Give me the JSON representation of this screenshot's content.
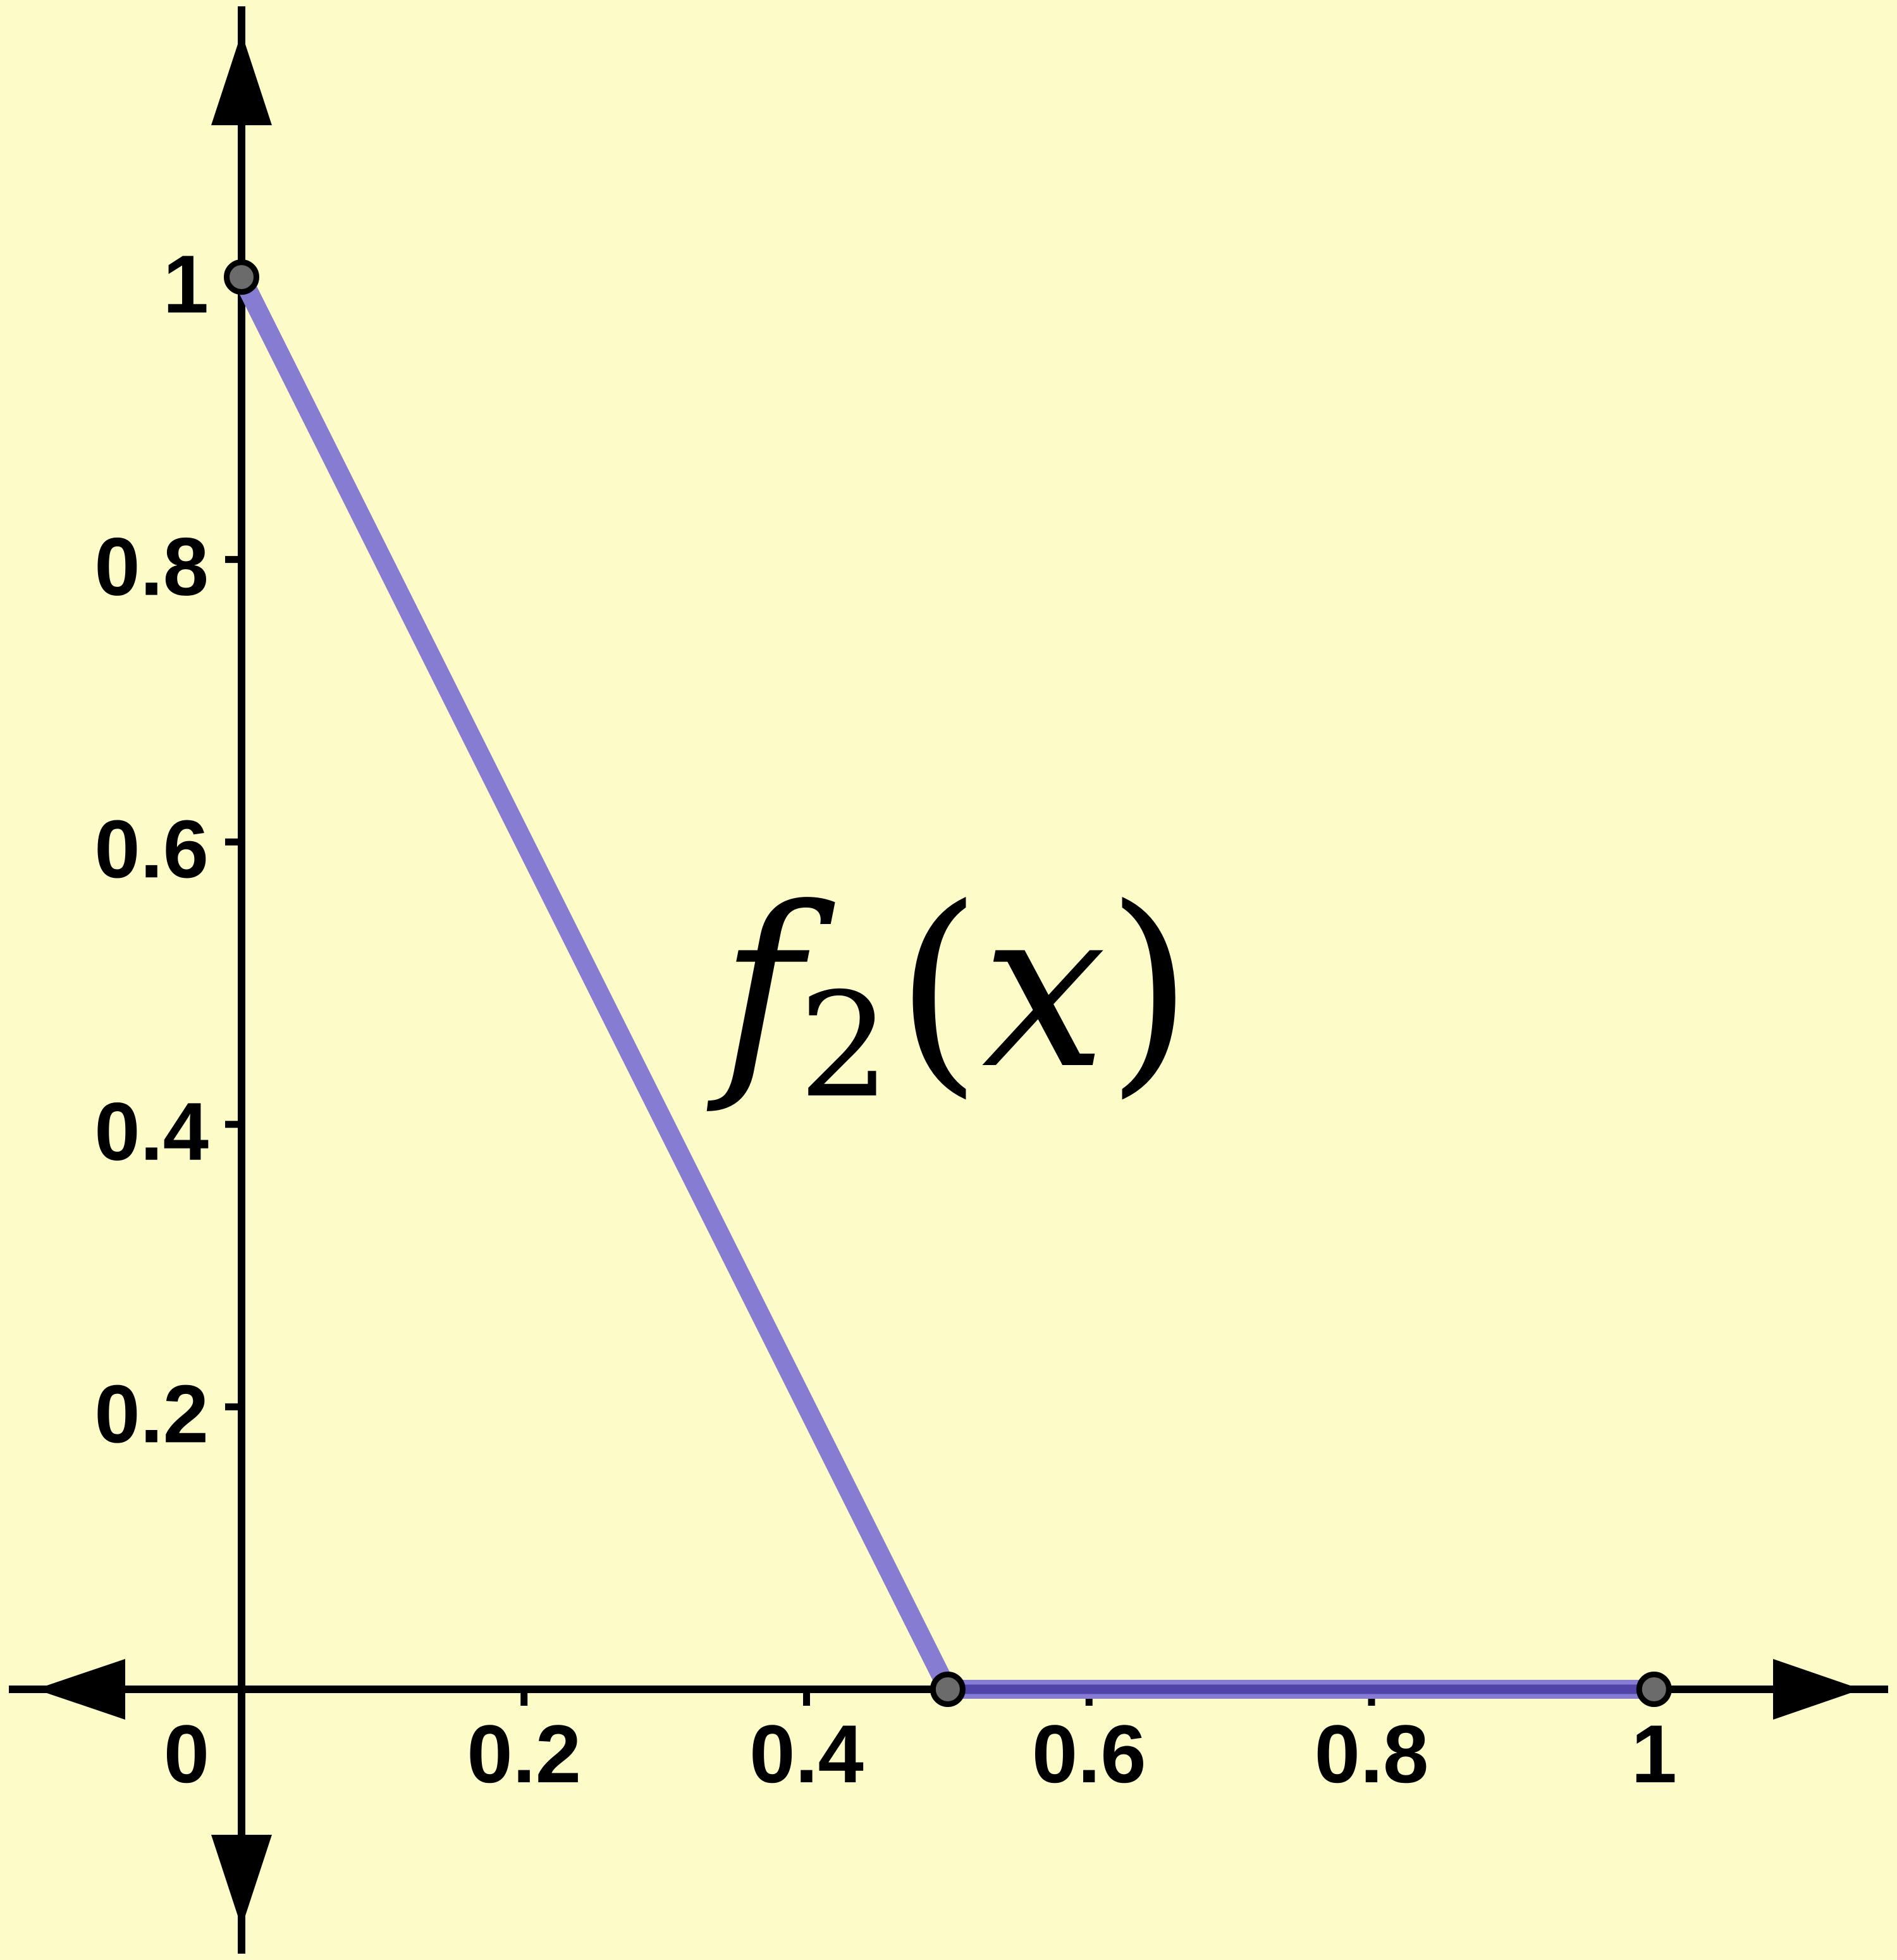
{
  "figure": {
    "description": "Graph of the piecewise linear function f2(x) on a pale yellow background"
  },
  "chart_data": {
    "type": "line",
    "title": "",
    "xlabel": "",
    "ylabel": "",
    "xlim": [
      -0.171,
      1.172
    ],
    "ylim": [
      -0.1917,
      1.1962
    ],
    "grid": false,
    "legend": false,
    "background_color": "#FDFCC8",
    "axis_color": "#000000",
    "x_axis": {
      "ticks": [
        {
          "value": 0,
          "label": "0"
        },
        {
          "value": 0.2,
          "label": "0.2"
        },
        {
          "value": 0.4,
          "label": "0.4"
        },
        {
          "value": 0.6,
          "label": "0.6"
        },
        {
          "value": 0.8,
          "label": "0.8"
        },
        {
          "value": 1,
          "label": "1"
        }
      ]
    },
    "y_axis": {
      "ticks": [
        {
          "value": 0.2,
          "label": "0.2"
        },
        {
          "value": 0.4,
          "label": "0.4"
        },
        {
          "value": 0.6,
          "label": "0.6"
        },
        {
          "value": 0.8,
          "label": "0.8"
        },
        {
          "value": 1,
          "label": "1"
        }
      ]
    },
    "series": [
      {
        "name": "f2(x)",
        "color": "#867CD2",
        "axis_overlap_core_color": "#5044A8",
        "points": [
          [
            0,
            1
          ],
          [
            0.5,
            0
          ],
          [
            1,
            0
          ]
        ]
      }
    ],
    "markers": {
      "fill": "#6B6B6B",
      "outline": "#000000",
      "points": [
        [
          0,
          1
        ],
        [
          0.5,
          0
        ],
        [
          1,
          0
        ]
      ]
    },
    "annotation": {
      "label": "f2(x)",
      "function_name": "f",
      "subscript": "2",
      "open_paren": "(",
      "variable": "x",
      "close_paren": ")",
      "x": 0.339,
      "y": 0.442
    }
  }
}
